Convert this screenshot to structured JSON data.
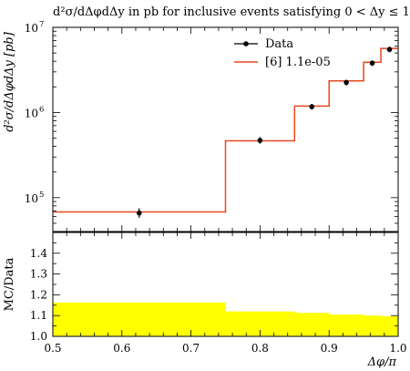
{
  "chart_data": {
    "title": "d²σ/dΔφdΔy in pb for inclusive events satisfying 0 < Δy ≤ 1",
    "xlabel": "Δφ/π",
    "top": {
      "type": "line",
      "ylabel": "d²σ/dΔφdΔy [pb]",
      "yscale": "log",
      "ylim": [
        40000,
        10000000
      ],
      "yticks": [
        {
          "value": 100000,
          "base": "10",
          "exp": "5"
        },
        {
          "value": 1000000,
          "base": "10",
          "exp": "6"
        },
        {
          "value": 10000000,
          "base": "10",
          "exp": "7"
        }
      ],
      "legend_position": "top-right",
      "series": [
        {
          "name": "Data",
          "kind": "points",
          "color": "#000000",
          "points": [
            {
              "x": 0.625,
              "y": 66000,
              "ylo": 58000,
              "yhi": 75000
            },
            {
              "x": 0.8,
              "y": 470000,
              "ylo": 430000,
              "yhi": 515000
            },
            {
              "x": 0.875,
              "y": 1170000,
              "ylo": 1080000,
              "yhi": 1260000
            },
            {
              "x": 0.925,
              "y": 2250000,
              "ylo": 2080000,
              "yhi": 2430000
            },
            {
              "x": 0.9625,
              "y": 3800000,
              "ylo": 3520000,
              "yhi": 4100000
            },
            {
              "x": 0.9875,
              "y": 5500000,
              "ylo": 5100000,
              "yhi": 5950000
            }
          ]
        },
        {
          "name": "[6] 1.1e-05",
          "kind": "histogram",
          "color": "#e8461e",
          "edges": [
            0.5,
            0.75,
            0.85,
            0.9,
            0.95,
            0.975,
            1.0
          ],
          "values": [
            68000,
            465000,
            1190000,
            2350000,
            3900000,
            5650000
          ]
        }
      ]
    },
    "bottom": {
      "type": "bar",
      "ylabel": "MC/Data",
      "ylim": [
        1.0,
        1.5
      ],
      "yticks": [
        "1.0",
        "1.1",
        "1.2",
        "1.3",
        "1.4"
      ],
      "band_color": "#ffff00",
      "edges": [
        0.5,
        0.75,
        0.85,
        0.9,
        0.95,
        0.975,
        1.0
      ],
      "values": [
        1.163,
        1.12,
        1.113,
        1.105,
        1.1,
        1.097
      ]
    },
    "xlim": [
      0.5,
      1.0
    ],
    "xticks": [
      "0.5",
      "0.6",
      "0.7",
      "0.8",
      "0.9",
      "1.0"
    ]
  }
}
